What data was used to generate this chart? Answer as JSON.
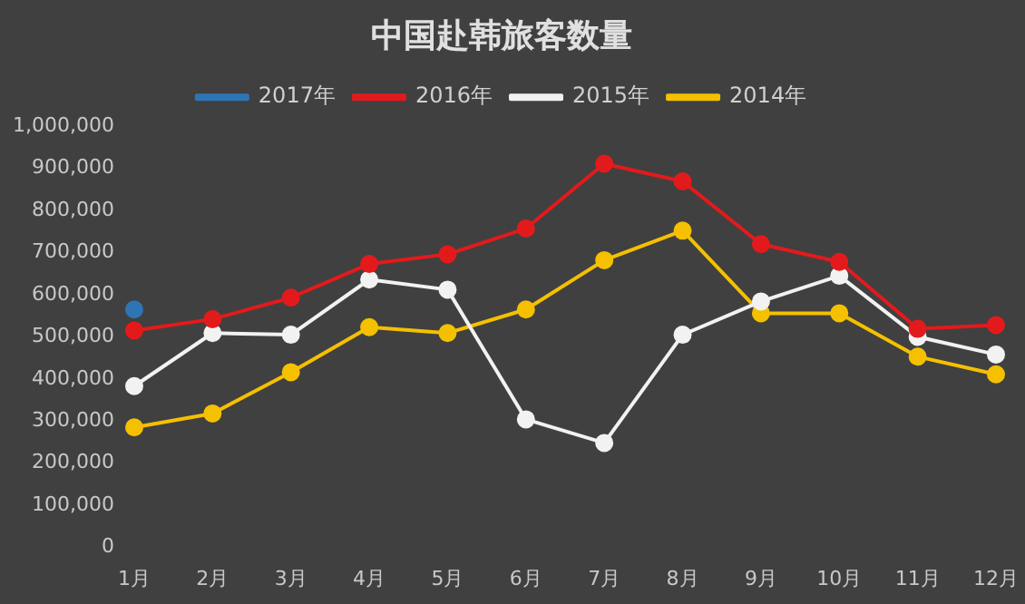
{
  "chart_data": {
    "type": "line",
    "title": "中国赴韩旅客数量",
    "categories": [
      "1月",
      "2月",
      "3月",
      "4月",
      "5月",
      "6月",
      "7月",
      "8月",
      "9月",
      "10月",
      "11月",
      "12月"
    ],
    "series": [
      {
        "name": "2017年",
        "color": "#2e75b6",
        "values": [
          565000,
          null,
          null,
          null,
          null,
          null,
          null,
          null,
          null,
          null,
          null,
          null
        ]
      },
      {
        "name": "2016年",
        "color": "#e31a1c",
        "values": [
          515000,
          542000,
          593000,
          673000,
          696000,
          757000,
          911000,
          869000,
          720000,
          678000,
          519000,
          528000
        ]
      },
      {
        "name": "2015年",
        "color": "#f2f2f2",
        "values": [
          383000,
          509000,
          505000,
          636000,
          612000,
          304000,
          248000,
          505000,
          584000,
          645000,
          500000,
          458000
        ]
      },
      {
        "name": "2014年",
        "color": "#f5c000",
        "values": [
          285000,
          318000,
          416000,
          523000,
          509000,
          565000,
          682000,
          752000,
          556000,
          556000,
          453000,
          411000
        ]
      }
    ],
    "ylim": [
      0,
      1000000
    ],
    "yticks": [
      0,
      {
        "value": 100000,
        "label": "100,000"
      },
      {
        "value": 200000,
        "label": "200,000"
      },
      {
        "value": 300000,
        "label": "300,000"
      },
      {
        "value": 400000,
        "label": "400,000"
      },
      {
        "value": 500000,
        "label": "500,000"
      },
      {
        "value": 600000,
        "label": "600,000"
      },
      {
        "value": 700000,
        "label": "700,000"
      },
      {
        "value": 800000,
        "label": "800,000"
      },
      {
        "value": 900000,
        "label": "900,000"
      },
      {
        "value": 1000000,
        "label": "1,000,000"
      }
    ],
    "grid": false,
    "legend": "top",
    "marker": "circle",
    "line_style": "solid"
  }
}
